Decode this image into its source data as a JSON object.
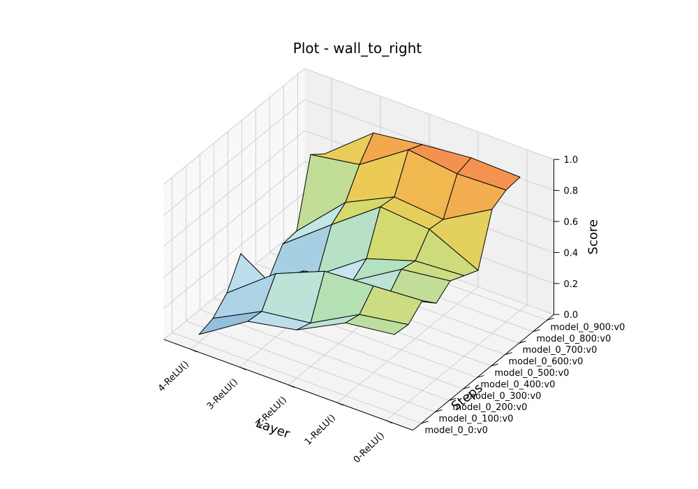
{
  "chart_data": {
    "type": "surface3d",
    "title": "Plot - wall_to_right",
    "xlabel": "Layer",
    "ylabel": "Steps",
    "zlabel": "Score",
    "layers": [
      "0-ReLU()",
      "1-ReLU()",
      "2-ReLU()",
      "3-ReLU()",
      "4-ReLU()"
    ],
    "steps": [
      "model_0_0:v0",
      "model_0_100:v0",
      "model_0_200:v0",
      "model_0_300:v0",
      "model_0_400:v0",
      "model_0_500:v0",
      "model_0_600:v0",
      "model_0_700:v0",
      "model_0_800:v0",
      "model_0_900:v0"
    ],
    "zticks": [
      "0.0",
      "0.2",
      "0.4",
      "0.6",
      "0.8",
      "1.0"
    ],
    "zlim": [
      0,
      1
    ],
    "grid": true,
    "colormap": "RdYlBu_r",
    "scores": [
      [
        0.51,
        0.47,
        0.31,
        0.25,
        0.05
      ],
      [
        0.5,
        0.45,
        0.28,
        0.24,
        0.08
      ],
      [
        0.58,
        0.56,
        0.54,
        0.41,
        0.17
      ],
      [
        0.49,
        0.41,
        0.21,
        0.15,
        0.35
      ],
      [
        0.56,
        0.52,
        0.33,
        0.28,
        0.06
      ],
      [
        0.52,
        0.5,
        0.4,
        0.18,
        0.04
      ],
      [
        0.48,
        0.63,
        0.66,
        0.43,
        0.19
      ],
      [
        0.8,
        0.62,
        0.65,
        0.5,
        0.2
      ],
      [
        0.85,
        0.84,
        0.88,
        0.67,
        0.62
      ],
      [
        0.86,
        0.87,
        0.84,
        0.8,
        0.55
      ]
    ]
  }
}
